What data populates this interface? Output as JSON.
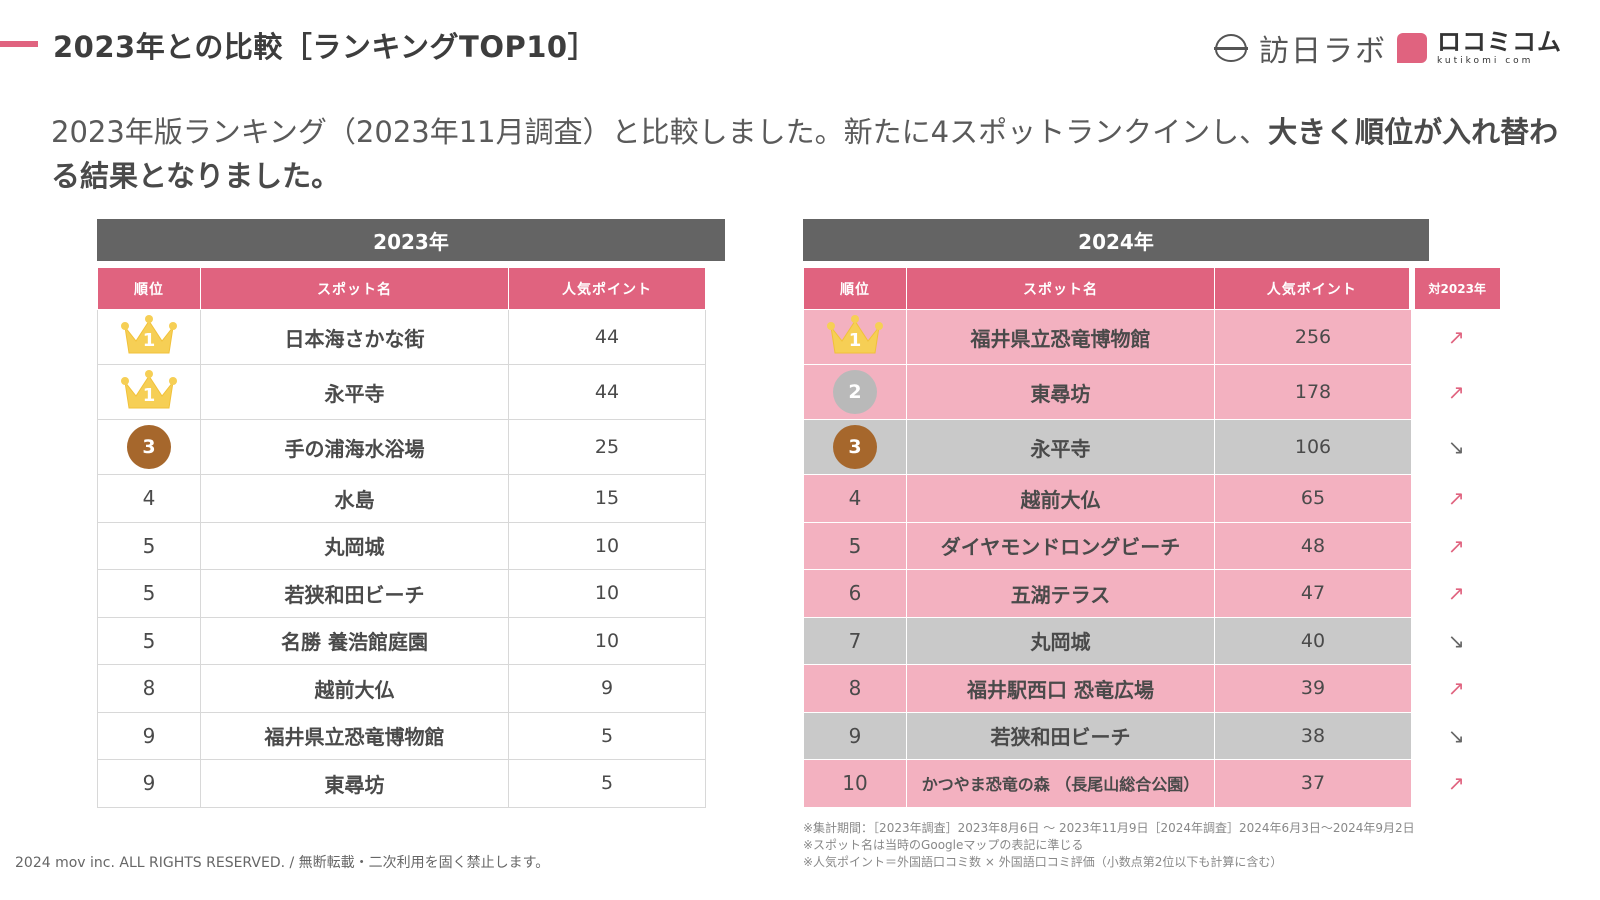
{
  "header": {
    "title": "2023年との比較［ランキングTOP10］",
    "brand1": "訪日ラボ",
    "brand2": "ロコミコム",
    "brand2_sub": "kutikomi com",
    "accent_color": "#e0637f"
  },
  "intro": {
    "text_normal": "2023年版ランキング（2023年11月調査）と比較しました。新たに4スポットランクインし、",
    "text_bold": "大きく順位が入れ替わる結果となりました。"
  },
  "table_2023": {
    "year": "2023年",
    "columns": [
      "順位",
      "スポット名",
      "人気ポイント"
    ],
    "rows": [
      {
        "rank": "1",
        "badge": "gold",
        "name": "日本海さかな街",
        "points": "44"
      },
      {
        "rank": "1",
        "badge": "gold",
        "name": "永平寺",
        "points": "44"
      },
      {
        "rank": "3",
        "badge": "bronze",
        "name": "手の浦海水浴場",
        "points": "25"
      },
      {
        "rank": "4",
        "badge": "",
        "name": "水島",
        "points": "15"
      },
      {
        "rank": "5",
        "badge": "",
        "name": "丸岡城",
        "points": "10"
      },
      {
        "rank": "5",
        "badge": "",
        "name": "若狭和田ビーチ",
        "points": "10"
      },
      {
        "rank": "5",
        "badge": "",
        "name": "名勝 養浩館庭園",
        "points": "10"
      },
      {
        "rank": "8",
        "badge": "",
        "name": "越前大仏",
        "points": "9"
      },
      {
        "rank": "9",
        "badge": "",
        "name": "福井県立恐竜博物館",
        "points": "5"
      },
      {
        "rank": "9",
        "badge": "",
        "name": "東尋坊",
        "points": "5"
      }
    ]
  },
  "table_2024": {
    "year": "2024年",
    "columns": [
      "順位",
      "スポット名",
      "人気ポイント"
    ],
    "compare_header": "対2023年",
    "rows": [
      {
        "rank": "1",
        "badge": "gold",
        "name": "福井県立恐竜博物館",
        "points": "256",
        "trend": "up",
        "arrow": "↗"
      },
      {
        "rank": "2",
        "badge": "silver",
        "name": "東尋坊",
        "points": "178",
        "trend": "up",
        "arrow": "↗"
      },
      {
        "rank": "3",
        "badge": "bronze",
        "name": "永平寺",
        "points": "106",
        "trend": "down",
        "arrow": "↘"
      },
      {
        "rank": "4",
        "badge": "",
        "name": "越前大仏",
        "points": "65",
        "trend": "up",
        "arrow": "↗"
      },
      {
        "rank": "5",
        "badge": "",
        "name": "ダイヤモンドロングビーチ",
        "points": "48",
        "trend": "up",
        "arrow": "↗"
      },
      {
        "rank": "6",
        "badge": "",
        "name": "五湖テラス",
        "points": "47",
        "trend": "up",
        "arrow": "↗"
      },
      {
        "rank": "7",
        "badge": "",
        "name": "丸岡城",
        "points": "40",
        "trend": "down",
        "arrow": "↘"
      },
      {
        "rank": "8",
        "badge": "",
        "name": "福井駅西口 恐竜広場",
        "points": "39",
        "trend": "up",
        "arrow": "↗"
      },
      {
        "rank": "9",
        "badge": "",
        "name": "若狭和田ビーチ",
        "points": "38",
        "trend": "down",
        "arrow": "↘"
      },
      {
        "rank": "10",
        "badge": "",
        "name": "かつやま恐竜の森 （長尾山総合公園）",
        "points": "37",
        "trend": "up",
        "arrow": "↗"
      }
    ]
  },
  "notes": [
    "※集計期間：［2023年調査］2023年8月6日 〜 2023年11月9日［2024年調査］2024年6月3日〜2024年9月2日",
    "※スポット名は当時のGoogleマップの表記に準じる",
    "※人気ポイント＝外国語口コミ数 × 外国語口コミ評価（小数点第2位以下も計算に含む）"
  ],
  "footer": {
    "copyright": "2024 mov inc. ALL RIGHTS RESERVED. / 無断転載・二次利用を固く禁止します。"
  }
}
